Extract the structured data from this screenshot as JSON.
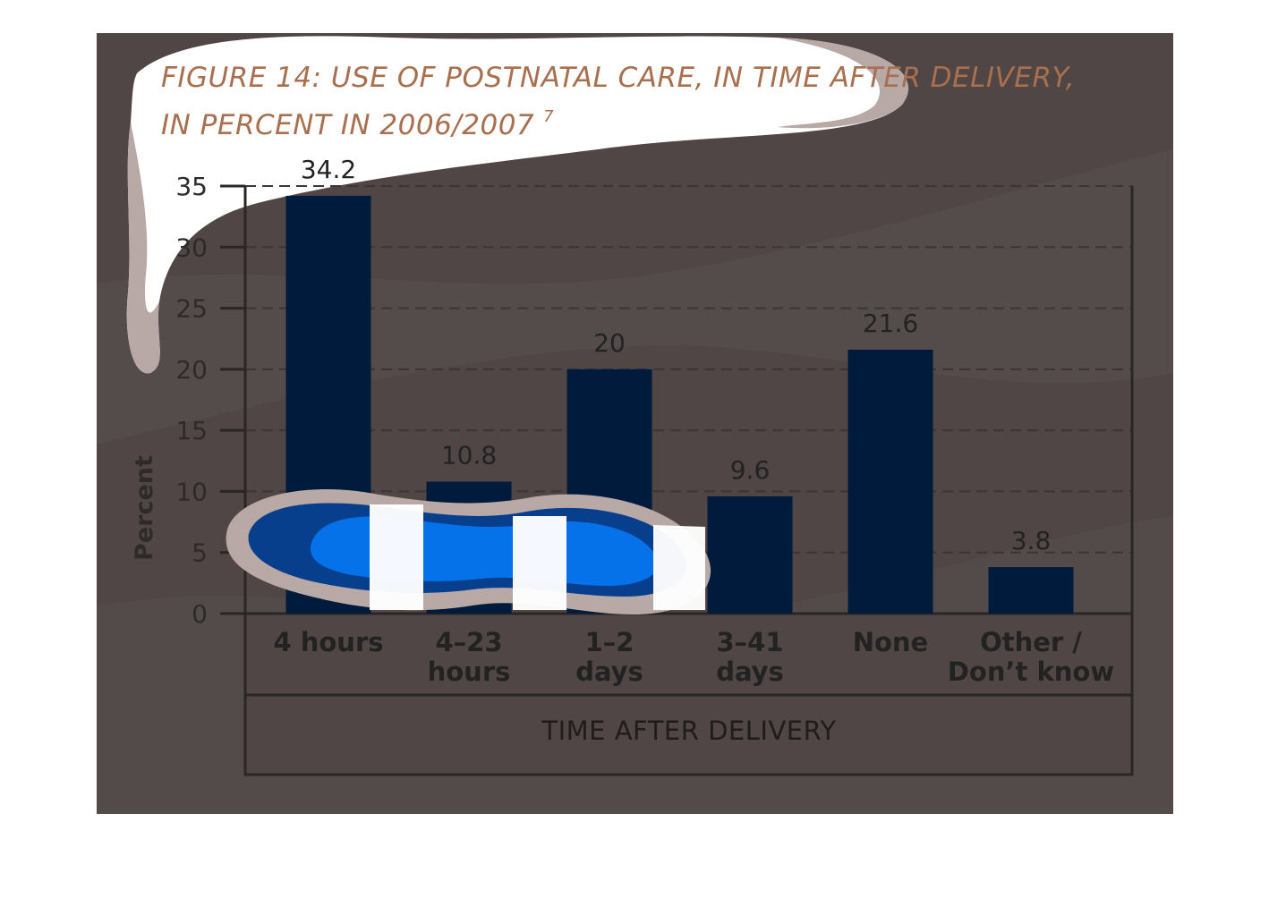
{
  "chart_data": {
    "type": "bar",
    "title_lines": [
      "FIGURE 14: USE OF POSTNATAL CARE, IN TIME AFTER DELIVERY,",
      "IN PERCENT IN 2006/2007"
    ],
    "title_footnote": "7",
    "ylabel": "Percent",
    "xlabel": "TIME AFTER DELIVERY",
    "ylim": [
      0,
      35
    ],
    "yticks": [
      0,
      5,
      10,
      15,
      20,
      25,
      30,
      35
    ],
    "categories": [
      [
        "4 hours"
      ],
      [
        "4–23",
        "hours"
      ],
      [
        "1–2",
        "days"
      ],
      [
        "3–41",
        "days"
      ],
      [
        "None"
      ],
      [
        "Other /",
        "Don’t know"
      ]
    ],
    "values": [
      34.2,
      10.8,
      20,
      9.6,
      21.6,
      3.8
    ],
    "value_labels": [
      "34.2",
      "10.8",
      "20",
      "9.6",
      "21.6",
      "3.8"
    ],
    "grid": true,
    "colors": {
      "bar": "#001b3b",
      "background": "#4f4645",
      "title": "#a8704f"
    }
  }
}
